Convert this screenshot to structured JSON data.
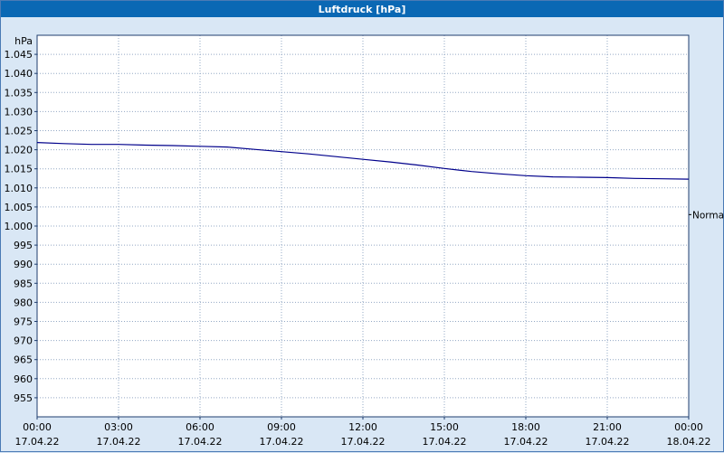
{
  "title": "Luftdruck [hPa]",
  "colors": {
    "titlebar_background": "#0a68b4",
    "titlebar_text": "#ffffff",
    "window_background": "#d9e7f5",
    "window_border": "#4a7ab5",
    "plot_background": "#ffffff",
    "gridline": "#93a8c4",
    "axis_border": "#1f3d6e",
    "line": "#00008b",
    "label_text": "#000000"
  },
  "chart_data": {
    "type": "line",
    "title": "Luftdruck [hPa]",
    "ylabel": "hPa",
    "xlabel": "",
    "ylim": [
      950,
      1050
    ],
    "xlim": [
      0,
      24
    ],
    "grid": true,
    "legend_position": "none",
    "yticks": [
      {
        "v": 1045,
        "label": "1.045"
      },
      {
        "v": 1040,
        "label": "1.040"
      },
      {
        "v": 1035,
        "label": "1.035"
      },
      {
        "v": 1030,
        "label": "1.030"
      },
      {
        "v": 1025,
        "label": "1.025"
      },
      {
        "v": 1020,
        "label": "1.020"
      },
      {
        "v": 1015,
        "label": "1.015"
      },
      {
        "v": 1010,
        "label": "1.010"
      },
      {
        "v": 1005,
        "label": "1.005"
      },
      {
        "v": 1000,
        "label": "1.000"
      },
      {
        "v": 995,
        "label": "995"
      },
      {
        "v": 990,
        "label": "990"
      },
      {
        "v": 985,
        "label": "985"
      },
      {
        "v": 980,
        "label": "980"
      },
      {
        "v": 975,
        "label": "975"
      },
      {
        "v": 970,
        "label": "970"
      },
      {
        "v": 965,
        "label": "965"
      },
      {
        "v": 960,
        "label": "960"
      },
      {
        "v": 955,
        "label": "955"
      }
    ],
    "xticks": [
      {
        "h": 0,
        "time": "00:00",
        "date": "17.04.22"
      },
      {
        "h": 3,
        "time": "03:00",
        "date": "17.04.22"
      },
      {
        "h": 6,
        "time": "06:00",
        "date": "17.04.22"
      },
      {
        "h": 9,
        "time": "09:00",
        "date": "17.04.22"
      },
      {
        "h": 12,
        "time": "12:00",
        "date": "17.04.22"
      },
      {
        "h": 15,
        "time": "15:00",
        "date": "17.04.22"
      },
      {
        "h": 18,
        "time": "18:00",
        "date": "17.04.22"
      },
      {
        "h": 21,
        "time": "21:00",
        "date": "17.04.22"
      },
      {
        "h": 24,
        "time": "00:00",
        "date": "18.04.22"
      }
    ],
    "hours": [
      0,
      1,
      2,
      3,
      4,
      5,
      6,
      7,
      8,
      9,
      10,
      11,
      12,
      13,
      14,
      15,
      16,
      17,
      18,
      19,
      20,
      21,
      22,
      23,
      24
    ],
    "series": [
      {
        "name": "Luftdruck",
        "values": [
          1021.9,
          1021.6,
          1021.4,
          1021.4,
          1021.2,
          1021.1,
          1020.9,
          1020.7,
          1020.1,
          1019.5,
          1018.9,
          1018.2,
          1017.5,
          1016.8,
          1016.0,
          1015.1,
          1014.3,
          1013.7,
          1013.2,
          1012.9,
          1012.8,
          1012.7,
          1012.5,
          1012.4,
          1012.3
        ]
      }
    ],
    "annotations": [
      {
        "label": "Normal",
        "value": 1003,
        "position": "right"
      }
    ]
  }
}
